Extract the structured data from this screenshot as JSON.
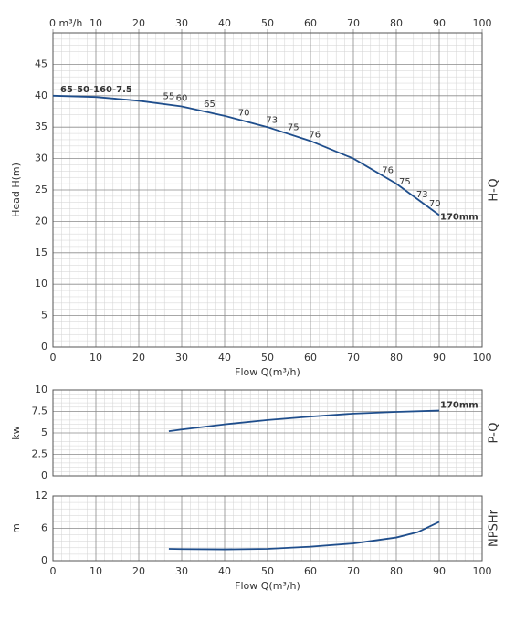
{
  "chart_data": [
    {
      "type": "line",
      "model": "65-50-160-7.5",
      "ylabel": "Head H(m)",
      "xlabel": "Flow Q(m³/h)",
      "side_label": "H-Q",
      "xlim": [
        0,
        100
      ],
      "ylim": [
        0,
        50
      ],
      "xticks": [
        0,
        10,
        20,
        30,
        40,
        50,
        60,
        70,
        80,
        90,
        100
      ],
      "x2ticks": [
        {
          "value": 0,
          "label": "0  m³/h"
        },
        10,
        20,
        30,
        40,
        50,
        60,
        70,
        80,
        90,
        100
      ],
      "yticks": [
        0,
        5,
        10,
        15,
        20,
        25,
        30,
        35,
        40,
        45
      ],
      "grid": true,
      "minor_divisions": 5,
      "x": [
        0,
        10,
        20,
        30,
        40,
        50,
        60,
        70,
        80,
        90
      ],
      "series": [
        {
          "name": "170mm",
          "color": "#1f4e8c",
          "values": [
            40,
            39.8,
            39.2,
            38.3,
            36.8,
            35,
            32.8,
            30,
            26,
            21
          ]
        }
      ],
      "efficiency": {
        "x": [
          27,
          30,
          36.5,
          44.5,
          51,
          56,
          61,
          78,
          82,
          86,
          89
        ],
        "values": [
          55,
          60,
          65,
          70,
          73,
          75,
          76,
          76,
          75,
          73,
          70
        ]
      }
    },
    {
      "type": "line",
      "ylabel": "kw",
      "side_label": "P-Q",
      "xlim": [
        0,
        100
      ],
      "ylim": [
        0,
        10
      ],
      "yticks": [
        0,
        2.5,
        5,
        7.5,
        10
      ],
      "xgrid": [
        0,
        10,
        20,
        30,
        40,
        50,
        60,
        70,
        80,
        90,
        100
      ],
      "grid": true,
      "minor_divisions": 5,
      "x": [
        27,
        30,
        40,
        50,
        60,
        70,
        80,
        90
      ],
      "series": [
        {
          "name": "170mm",
          "color": "#1f4e8c",
          "values": [
            5.2,
            5.4,
            6.0,
            6.5,
            6.9,
            7.25,
            7.45,
            7.6
          ]
        }
      ]
    },
    {
      "type": "line",
      "ylabel": "m",
      "xlabel": "Flow Q(m³/h)",
      "side_label": "NPSHr",
      "xlim": [
        0,
        100
      ],
      "ylim": [
        0,
        12
      ],
      "yticks": [
        0,
        6,
        12
      ],
      "xticks": [
        0,
        10,
        20,
        30,
        40,
        50,
        60,
        70,
        80,
        90,
        100
      ],
      "grid": true,
      "minor_divisions": 5,
      "x": [
        27,
        30,
        40,
        50,
        60,
        70,
        80,
        85,
        90
      ],
      "series": [
        {
          "color": "#1f4e8c",
          "values": [
            2.2,
            2.15,
            2.1,
            2.2,
            2.6,
            3.2,
            4.3,
            5.3,
            7.2
          ]
        }
      ]
    }
  ]
}
